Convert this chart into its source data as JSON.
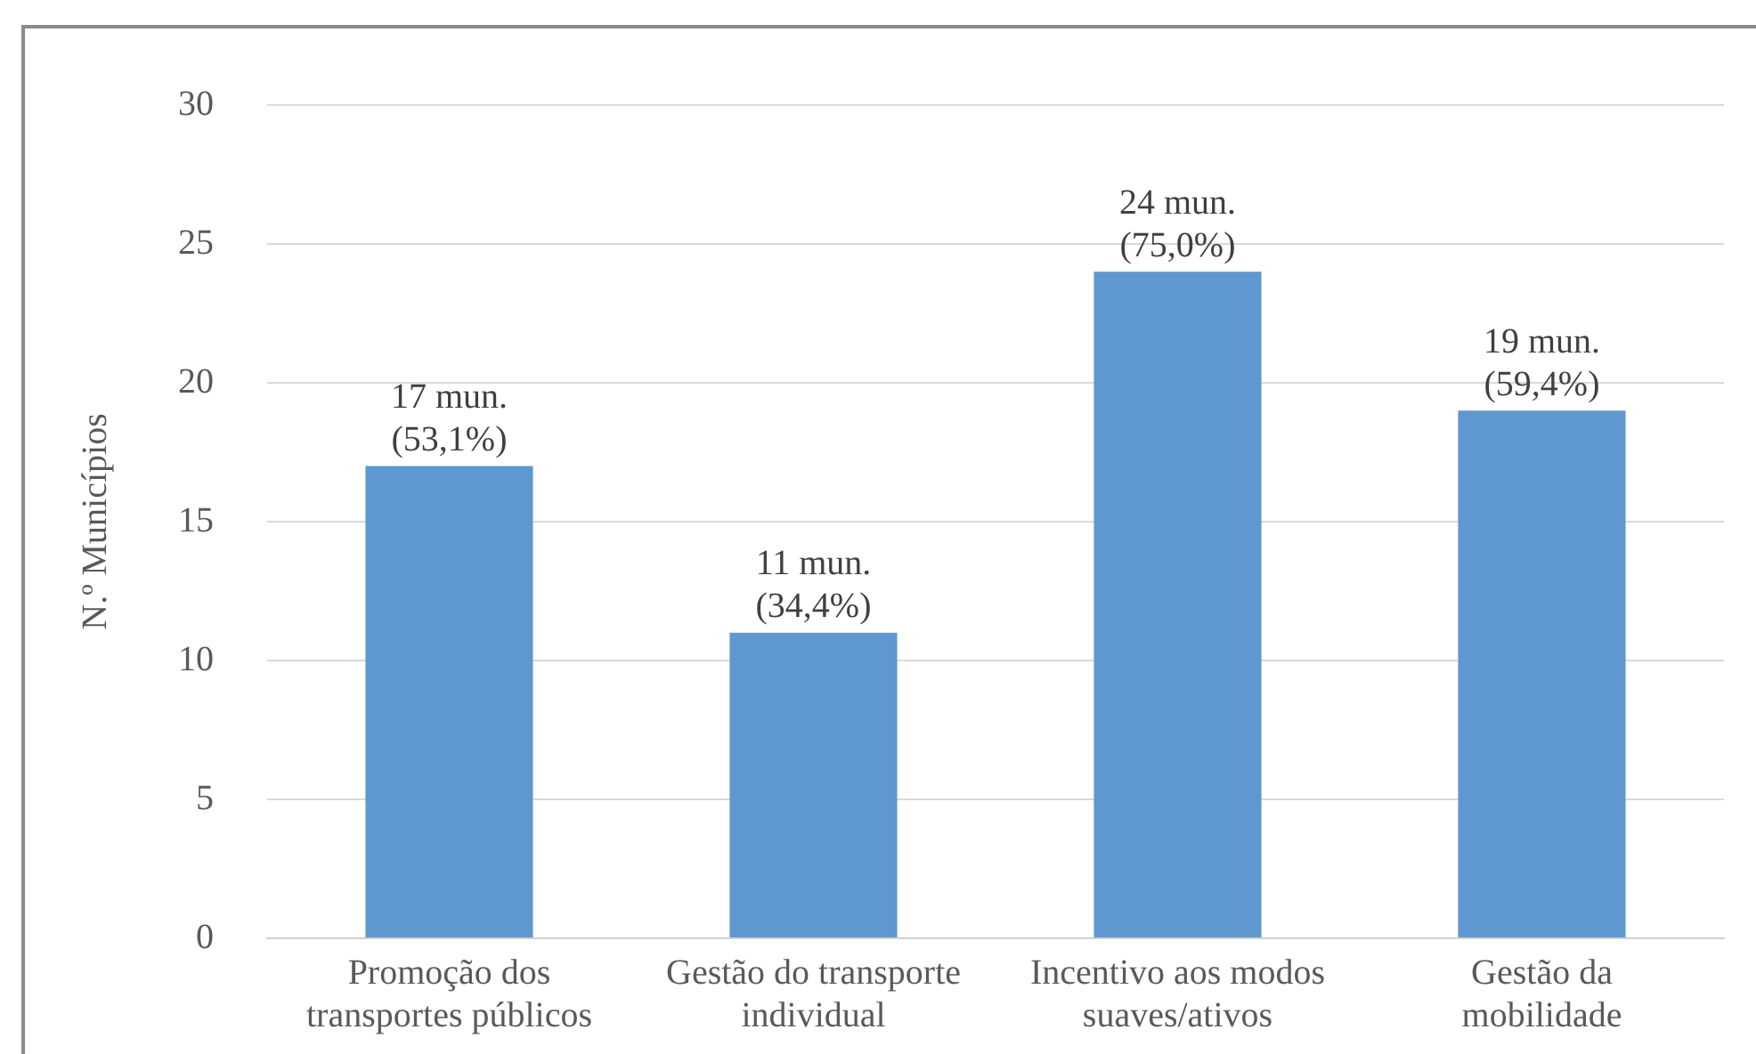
{
  "chart_data": {
    "type": "bar",
    "ylabel": "N.º Municípios",
    "categories": [
      "Promoção dos\ntransportes públicos",
      "Gestão do transporte\nindividual",
      "Incentivo aos modos\nsuaves/ativos",
      "Gestão da\nmobilidade"
    ],
    "values": [
      17,
      11,
      24,
      19
    ],
    "color": "#5f97d0",
    "value_labels": [
      "17 mun.\n(53,1%)",
      "11 mun.\n(34,4%)",
      "24 mun.\n(75,0%)",
      "19 mun.\n(59,4%)"
    ],
    "ylim": [
      0,
      30
    ],
    "yticks": [
      0,
      5,
      10,
      15,
      20,
      25,
      30
    ],
    "grid": "y",
    "legend": false
  }
}
